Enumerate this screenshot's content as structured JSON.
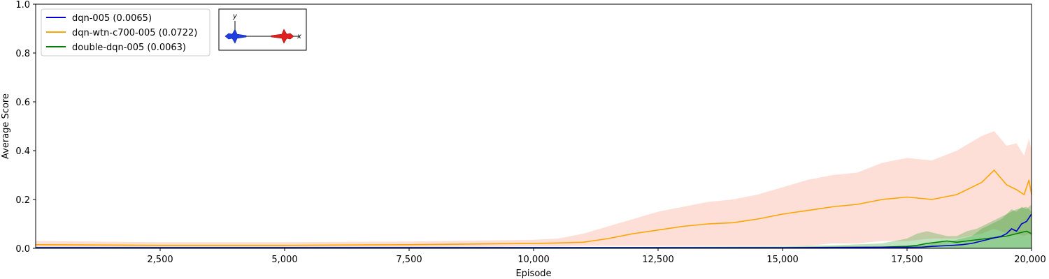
{
  "chart_data": {
    "type": "line",
    "xlabel": "Episode",
    "ylabel": "Average Score",
    "xlim": [
      0,
      20000
    ],
    "ylim": [
      0,
      1.0
    ],
    "xticks": [
      2500,
      5000,
      7500,
      10000,
      12500,
      15000,
      17500,
      20000
    ],
    "xtick_labels": [
      "2,500",
      "5,000",
      "7,500",
      "10,000",
      "12,500",
      "15,000",
      "17,500",
      "20,000"
    ],
    "yticks": [
      0,
      0.2,
      0.4,
      0.6,
      0.8,
      1.0
    ],
    "ytick_labels": [
      "0.0",
      "0.2",
      "0.4",
      "0.6",
      "0.8",
      "1.0"
    ],
    "grid": false,
    "legend_position": "top-left",
    "series": [
      {
        "name": "dqn-005 (0.0065)",
        "color": "#0000cc",
        "band_color": "#2ca02c",
        "x": [
          0,
          2500,
          5000,
          7500,
          10000,
          12000,
          15000,
          16000,
          17000,
          17500,
          17800,
          18000,
          18200,
          18400,
          18600,
          18800,
          19000,
          19200,
          19400,
          19500,
          19600,
          19700,
          19800,
          19900,
          20000
        ],
        "y": [
          0.002,
          0.002,
          0.002,
          0.002,
          0.002,
          0.002,
          0.002,
          0.003,
          0.004,
          0.004,
          0.005,
          0.008,
          0.01,
          0.012,
          0.015,
          0.02,
          0.03,
          0.04,
          0.05,
          0.06,
          0.08,
          0.07,
          0.1,
          0.11,
          0.14
        ],
        "lower": [
          0,
          0,
          0,
          0,
          0,
          0,
          0,
          0,
          0,
          0,
          0,
          0,
          0,
          0,
          0,
          0,
          0,
          0,
          0,
          0,
          0,
          0,
          0,
          0,
          0
        ],
        "upper": [
          0.004,
          0.004,
          0.004,
          0.004,
          0.004,
          0.004,
          0.004,
          0.006,
          0.008,
          0.01,
          0.015,
          0.02,
          0.03,
          0.03,
          0.04,
          0.05,
          0.08,
          0.1,
          0.12,
          0.14,
          0.16,
          0.15,
          0.17,
          0.16,
          0.18
        ]
      },
      {
        "name": "dqn-wtn-c700-005 (0.0722)",
        "color": "#ffa500",
        "band_color": "#fa8060",
        "x": [
          0,
          2500,
          5000,
          7500,
          10000,
          10500,
          11000,
          11500,
          12000,
          12500,
          13000,
          13500,
          14000,
          14500,
          15000,
          15500,
          16000,
          16500,
          17000,
          17500,
          18000,
          18500,
          19000,
          19250,
          19500,
          19700,
          19850,
          19950,
          20000
        ],
        "y": [
          0.015,
          0.012,
          0.012,
          0.015,
          0.02,
          0.022,
          0.025,
          0.04,
          0.06,
          0.075,
          0.09,
          0.1,
          0.105,
          0.12,
          0.14,
          0.155,
          0.17,
          0.18,
          0.2,
          0.21,
          0.2,
          0.22,
          0.27,
          0.32,
          0.26,
          0.24,
          0.22,
          0.28,
          0.22
        ],
        "lower": [
          0.005,
          0.005,
          0.005,
          0.005,
          0.008,
          0.008,
          0.01,
          0.01,
          0.01,
          0.01,
          0.01,
          0.01,
          0.01,
          0.01,
          0.01,
          0.01,
          0.02,
          0.02,
          0.03,
          0.03,
          0.04,
          0.04,
          0.06,
          0.08,
          0.06,
          0.06,
          0.05,
          0.06,
          0.05
        ],
        "upper": [
          0.03,
          0.025,
          0.025,
          0.028,
          0.035,
          0.04,
          0.06,
          0.09,
          0.12,
          0.15,
          0.17,
          0.19,
          0.2,
          0.22,
          0.25,
          0.28,
          0.3,
          0.31,
          0.35,
          0.37,
          0.36,
          0.4,
          0.46,
          0.48,
          0.42,
          0.43,
          0.38,
          0.45,
          0.4
        ]
      },
      {
        "name": "double-dqn-005 (0.0063)",
        "color": "#008000",
        "band_color": "#2ca02c",
        "x": [
          0,
          2500,
          5000,
          7500,
          10000,
          12000,
          15000,
          16000,
          17000,
          17500,
          17700,
          17900,
          18100,
          18300,
          18500,
          18700,
          18900,
          19100,
          19300,
          19500,
          19700,
          19900,
          20000
        ],
        "y": [
          0.003,
          0.003,
          0.003,
          0.003,
          0.003,
          0.003,
          0.003,
          0.004,
          0.005,
          0.008,
          0.012,
          0.02,
          0.025,
          0.03,
          0.025,
          0.03,
          0.035,
          0.04,
          0.045,
          0.05,
          0.06,
          0.07,
          0.06
        ],
        "lower": [
          0,
          0,
          0,
          0,
          0,
          0,
          0,
          0,
          0,
          0,
          0,
          0,
          0,
          0,
          0,
          0,
          0,
          0,
          0,
          0,
          0,
          0,
          0
        ],
        "upper": [
          0.006,
          0.006,
          0.006,
          0.006,
          0.006,
          0.006,
          0.008,
          0.012,
          0.02,
          0.04,
          0.06,
          0.07,
          0.06,
          0.05,
          0.05,
          0.07,
          0.08,
          0.1,
          0.12,
          0.14,
          0.16,
          0.17,
          0.15
        ]
      }
    ]
  }
}
